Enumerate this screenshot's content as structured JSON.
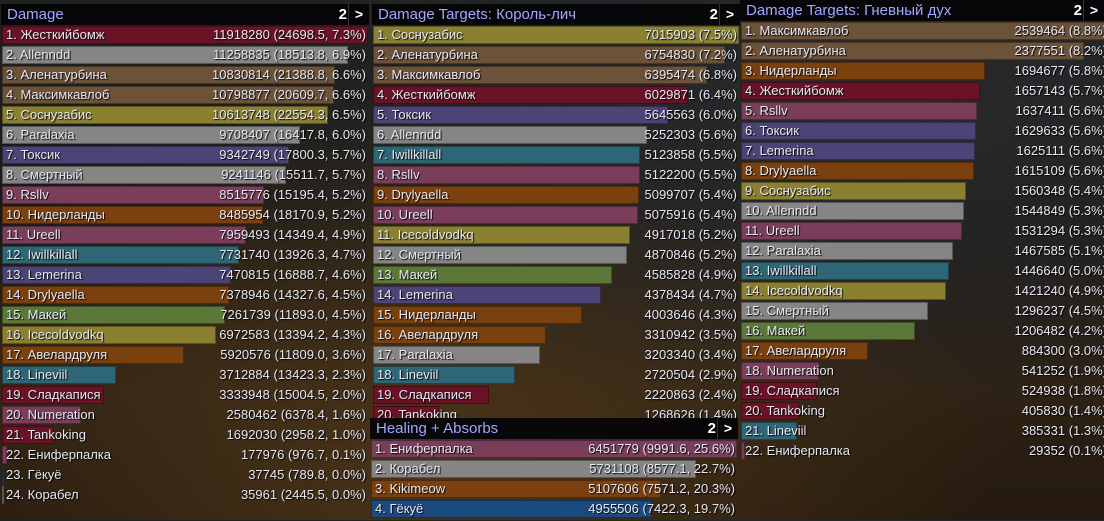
{
  "palette": {
    "Жесткийбомж": "#6a1326",
    "Сладкапися": "#6a1326",
    "Tankoking": "#6a1326",
    "Allenndd": "#858585",
    "Paralaxia": "#858585",
    "Смертный": "#858585",
    "Корабел": "#858585",
    "Аленатурбина": "#6b5238",
    "Максимкавлоб": "#6b5238",
    "Соснузабис": "#8a8030",
    "Icecoldvodkq": "#8a8030",
    "Токсик": "#4c4476",
    "Lemerina": "#4c4476",
    "Rsllv": "#7a3e5a",
    "Ureell": "#7a3e5a",
    "Numeration": "#7a3e5a",
    "Енiферпалка": "#7a3e5a",
    "Ениферпалка": "#7a3e5a",
    "Нидерланды": "#7a400e",
    "Drylyaella": "#7a400e",
    "Авелардруля": "#7a400e",
    "Kikimeow": "#7a400e",
    "Iwillkillall": "#2e6676",
    "Lineviil": "#2e6676",
    "Макей": "#5c7838",
    "Гёкуё": "#1b4a80"
  },
  "windows": [
    {
      "id": "damage",
      "title": "Damage",
      "page": "2",
      "next": ">",
      "rows": [
        {
          "rank": 1,
          "name": "Жесткийбомж",
          "value": 11918280,
          "text": "11918280 (24698.5, 7.3%)"
        },
        {
          "rank": 2,
          "name": "Allenndd",
          "value": 11258835,
          "text": "11258835 (18513.8, 6.9%)"
        },
        {
          "rank": 3,
          "name": "Аленатурбина",
          "value": 10830814,
          "text": "10830814 (21388.8, 6.6%)"
        },
        {
          "rank": 4,
          "name": "Максимкавлоб",
          "value": 10798877,
          "text": "10798877 (20609.7, 6.6%)"
        },
        {
          "rank": 5,
          "name": "Соснузабис",
          "value": 10613748,
          "text": "10613748 (22554.3, 6.5%)"
        },
        {
          "rank": 6,
          "name": "Paralaxia",
          "value": 9708407,
          "text": "9708407 (16417.8, 6.0%)"
        },
        {
          "rank": 7,
          "name": "Токсик",
          "value": 9342749,
          "text": "9342749 (17800.3, 5.7%)"
        },
        {
          "rank": 8,
          "name": "Смертный",
          "value": 9241146,
          "text": "9241146 (15511.7, 5.7%)"
        },
        {
          "rank": 9,
          "name": "Rsllv",
          "value": 8515776,
          "text": "8515776 (15195.4, 5.2%)"
        },
        {
          "rank": 10,
          "name": "Нидерланды",
          "value": 8485954,
          "text": "8485954 (18170.9, 5.2%)"
        },
        {
          "rank": 11,
          "name": "Ureell",
          "value": 7959493,
          "text": "7959493 (14349.4, 4.9%)"
        },
        {
          "rank": 12,
          "name": "Iwillkillall",
          "value": 7731740,
          "text": "7731740 (13926.3, 4.7%)"
        },
        {
          "rank": 13,
          "name": "Lemerina",
          "value": 7470815,
          "text": "7470815 (16888.7, 4.6%)"
        },
        {
          "rank": 14,
          "name": "Drylyaella",
          "value": 7378946,
          "text": "7378946 (14327.6, 4.5%)"
        },
        {
          "rank": 15,
          "name": "Макей",
          "value": 7261739,
          "text": "7261739 (11893.0, 4.5%)"
        },
        {
          "rank": 16,
          "name": "Icecoldvodkq",
          "value": 6972583,
          "text": "6972583 (13394.2, 4.3%)"
        },
        {
          "rank": 17,
          "name": "Авелардруля",
          "value": 5920576,
          "text": "5920576 (11809.0, 3.6%)"
        },
        {
          "rank": 18,
          "name": "Lineviil",
          "value": 3712884,
          "text": "3712884 (13423.3, 2.3%)"
        },
        {
          "rank": 19,
          "name": "Сладкапися",
          "value": 3333948,
          "text": "3333948 (15004.5, 2.0%)"
        },
        {
          "rank": 20,
          "name": "Numeration",
          "value": 2580462,
          "text": "2580462 (6378.4, 1.6%)"
        },
        {
          "rank": 21,
          "name": "Tankoking",
          "value": 1692030,
          "text": "1692030 (2958.2, 1.0%)"
        },
        {
          "rank": 22,
          "name": "Ениферпалка",
          "value": 177976,
          "text": "177976 (976.7, 0.1%)"
        },
        {
          "rank": 23,
          "name": "Гёкуё",
          "value": 37745,
          "text": "37745 (789.8, 0.0%)"
        },
        {
          "rank": 24,
          "name": "Корабел",
          "value": 35961,
          "text": "35961 (2445.5, 0.0%)"
        }
      ]
    },
    {
      "id": "targets-lich",
      "title": "Damage Targets: Король-лич",
      "page": "2",
      "next": ">",
      "rows": [
        {
          "rank": 1,
          "name": "Соснузабис",
          "value": 7015903,
          "text": "7015903 (7.5%)"
        },
        {
          "rank": 2,
          "name": "Аленатурбина",
          "value": 6754830,
          "text": "6754830 (7.2%)"
        },
        {
          "rank": 3,
          "name": "Максимкавлоб",
          "value": 6395474,
          "text": "6395474 (6.8%)"
        },
        {
          "rank": 4,
          "name": "Жесткийбомж",
          "value": 6029871,
          "text": "6029871 (6.4%)"
        },
        {
          "rank": 5,
          "name": "Токсик",
          "value": 5645563,
          "text": "5645563 (6.0%)"
        },
        {
          "rank": 6,
          "name": "Allenndd",
          "value": 5252303,
          "text": "5252303 (5.6%)"
        },
        {
          "rank": 7,
          "name": "Iwillkillall",
          "value": 5123858,
          "text": "5123858 (5.5%)"
        },
        {
          "rank": 8,
          "name": "Rsllv",
          "value": 5122200,
          "text": "5122200 (5.5%)"
        },
        {
          "rank": 9,
          "name": "Drylyaella",
          "value": 5099707,
          "text": "5099707 (5.4%)"
        },
        {
          "rank": 10,
          "name": "Ureell",
          "value": 5075916,
          "text": "5075916 (5.4%)"
        },
        {
          "rank": 11,
          "name": "Icecoldvodkq",
          "value": 4917018,
          "text": "4917018 (5.2%)"
        },
        {
          "rank": 12,
          "name": "Смертный",
          "value": 4870846,
          "text": "4870846 (5.2%)"
        },
        {
          "rank": 13,
          "name": "Макей",
          "value": 4585828,
          "text": "4585828 (4.9%)"
        },
        {
          "rank": 14,
          "name": "Lemerina",
          "value": 4378434,
          "text": "4378434 (4.7%)"
        },
        {
          "rank": 15,
          "name": "Нидерланды",
          "value": 4003646,
          "text": "4003646 (4.3%)"
        },
        {
          "rank": 16,
          "name": "Авелардруля",
          "value": 3310942,
          "text": "3310942 (3.5%)"
        },
        {
          "rank": 17,
          "name": "Paralaxia",
          "value": 3203340,
          "text": "3203340 (3.4%)"
        },
        {
          "rank": 18,
          "name": "Lineviil",
          "value": 2720504,
          "text": "2720504 (2.9%)"
        },
        {
          "rank": 19,
          "name": "Сладкапися",
          "value": 2220863,
          "text": "2220863 (2.4%)"
        },
        {
          "rank": 20,
          "name": "Tankoking",
          "value": 1268626,
          "text": "1268626 (1.4%)"
        }
      ]
    },
    {
      "id": "healing",
      "title": "Healing + Absorbs",
      "page": "2",
      "next": ">",
      "rows": [
        {
          "rank": 1,
          "name": "Ениферпалка",
          "value": 6451779,
          "text": "6451779 (9991.6, 25.6%)"
        },
        {
          "rank": 2,
          "name": "Корабел",
          "value": 5731108,
          "text": "5731108 (8577.1, 22.7%)"
        },
        {
          "rank": 3,
          "name": "Kikimeow",
          "value": 5107606,
          "text": "5107606 (7571.2, 20.3%)"
        },
        {
          "rank": 4,
          "name": "Гёкуё",
          "value": 4955506,
          "text": "4955506 (7422.3, 19.7%)"
        }
      ]
    },
    {
      "id": "targets-spirit",
      "title": "Damage Targets: Гневный дух",
      "page": "2",
      "next": ">",
      "rows": [
        {
          "rank": 1,
          "name": "Максимкавлоб",
          "value": 2539464,
          "text": "2539464 (8.8%)"
        },
        {
          "rank": 2,
          "name": "Аленатурбина",
          "value": 2377551,
          "text": "2377551 (8.2%)"
        },
        {
          "rank": 3,
          "name": "Нидерланды",
          "value": 1694677,
          "text": "1694677 (5.8%)"
        },
        {
          "rank": 4,
          "name": "Жесткийбомж",
          "value": 1657143,
          "text": "1657143 (5.7%)"
        },
        {
          "rank": 5,
          "name": "Rsllv",
          "value": 1637411,
          "text": "1637411 (5.6%)"
        },
        {
          "rank": 6,
          "name": "Токсик",
          "value": 1629633,
          "text": "1629633 (5.6%)"
        },
        {
          "rank": 7,
          "name": "Lemerina",
          "value": 1625111,
          "text": "1625111 (5.6%)"
        },
        {
          "rank": 8,
          "name": "Drylyaella",
          "value": 1615109,
          "text": "1615109 (5.6%)"
        },
        {
          "rank": 9,
          "name": "Соснузабис",
          "value": 1560348,
          "text": "1560348 (5.4%)"
        },
        {
          "rank": 10,
          "name": "Allenndd",
          "value": 1544849,
          "text": "1544849 (5.3%)"
        },
        {
          "rank": 11,
          "name": "Ureell",
          "value": 1531294,
          "text": "1531294 (5.3%)"
        },
        {
          "rank": 12,
          "name": "Paralaxia",
          "value": 1467585,
          "text": "1467585 (5.1%)"
        },
        {
          "rank": 13,
          "name": "Iwillkillall",
          "value": 1446640,
          "text": "1446640 (5.0%)"
        },
        {
          "rank": 14,
          "name": "Icecoldvodkq",
          "value": 1421240,
          "text": "1421240 (4.9%)"
        },
        {
          "rank": 15,
          "name": "Смертный",
          "value": 1296237,
          "text": "1296237 (4.5%)"
        },
        {
          "rank": 16,
          "name": "Макей",
          "value": 1206482,
          "text": "1206482 (4.2%)"
        },
        {
          "rank": 17,
          "name": "Авелардруля",
          "value": 884300,
          "text": "884300 (3.0%)"
        },
        {
          "rank": 18,
          "name": "Numeration",
          "value": 541252,
          "text": "541252 (1.9%)"
        },
        {
          "rank": 19,
          "name": "Сладкапися",
          "value": 524938,
          "text": "524938 (1.8%)"
        },
        {
          "rank": 20,
          "name": "Tankoking",
          "value": 405830,
          "text": "405830 (1.4%)"
        },
        {
          "rank": 21,
          "name": "Lineviil",
          "value": 385331,
          "text": "385331 (1.3%)"
        },
        {
          "rank": 22,
          "name": "Ениферпалка",
          "value": 29352,
          "text": "29352 (0.1%)"
        }
      ]
    }
  ]
}
